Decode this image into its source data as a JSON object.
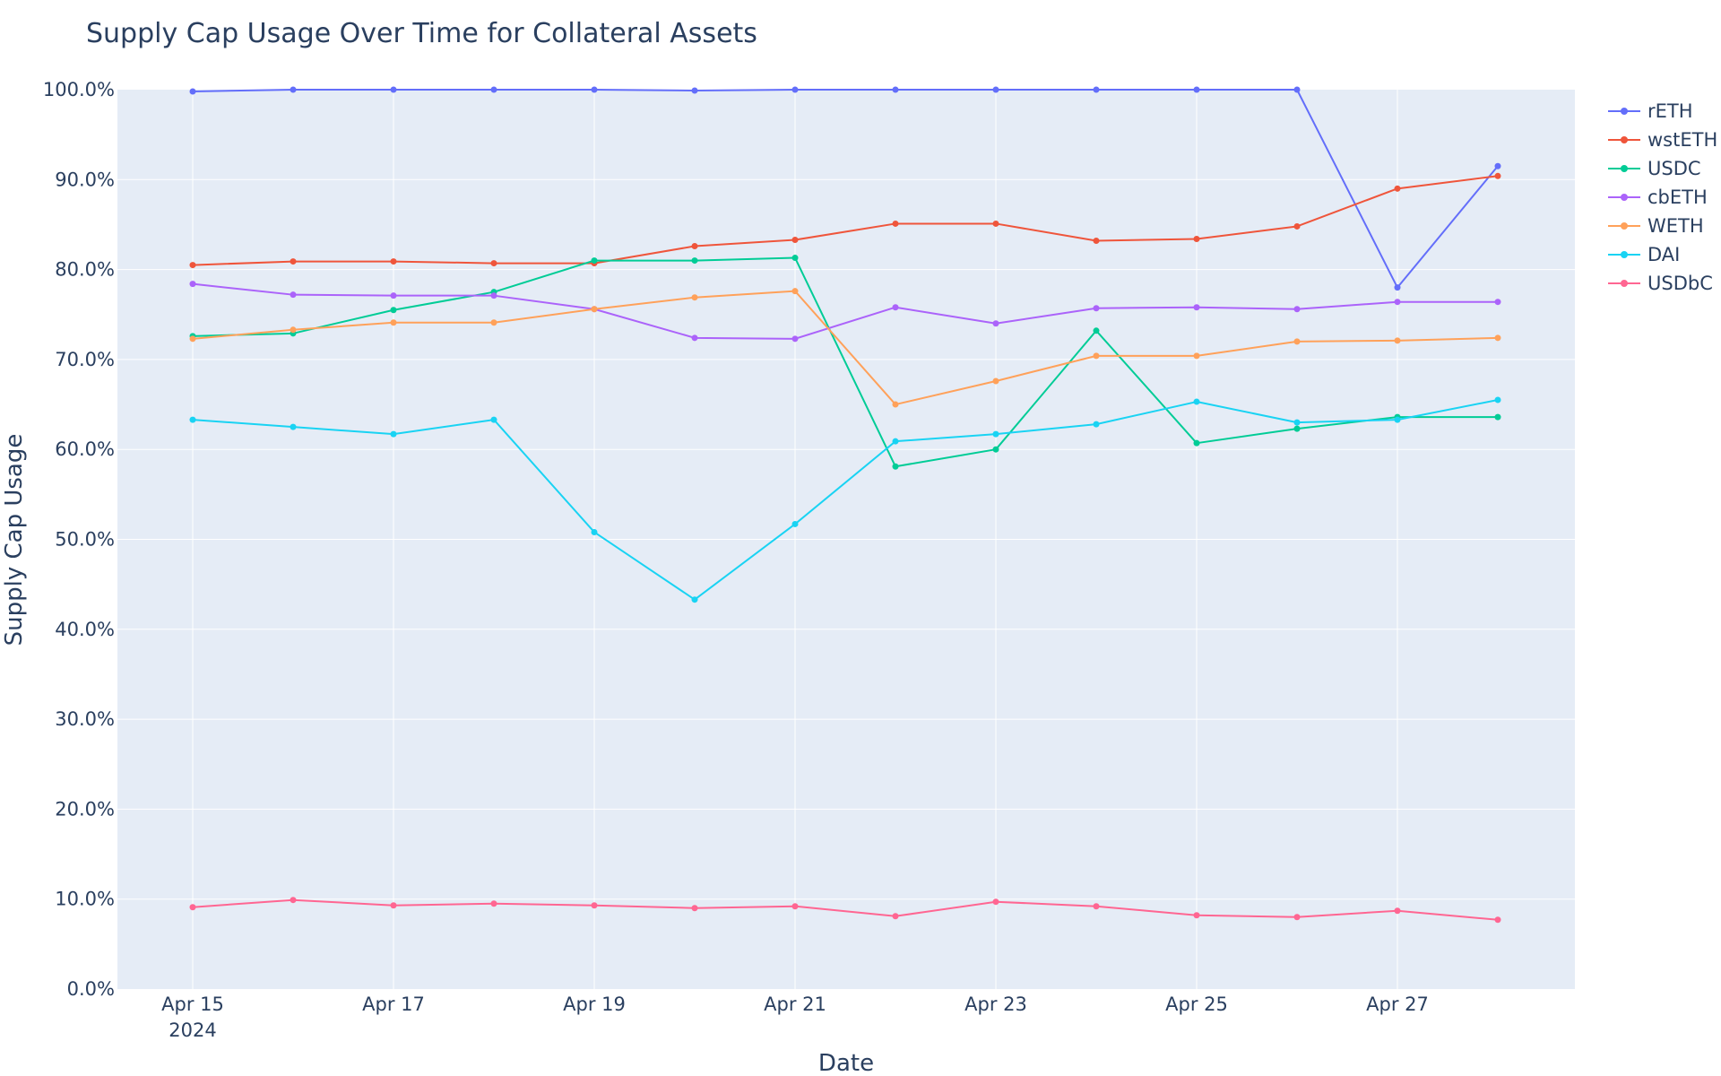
{
  "chart_data": {
    "type": "line",
    "title": "Supply Cap Usage Over Time for Collateral Assets",
    "xlabel": "Date",
    "ylabel": "Supply Cap Usage",
    "ylim": [
      0,
      100
    ],
    "y_tick_format": "percent_1dp",
    "y_ticks": [
      "0.0%",
      "10.0%",
      "20.0%",
      "30.0%",
      "40.0%",
      "50.0%",
      "60.0%",
      "70.0%",
      "80.0%",
      "90.0%",
      "100.0%"
    ],
    "x_ticks": [
      {
        "label": "Apr 15",
        "sublabel": "2024",
        "index": 0
      },
      {
        "label": "Apr 17",
        "sublabel": "",
        "index": 2
      },
      {
        "label": "Apr 19",
        "sublabel": "",
        "index": 4
      },
      {
        "label": "Apr 21",
        "sublabel": "",
        "index": 6
      },
      {
        "label": "Apr 23",
        "sublabel": "",
        "index": 8
      },
      {
        "label": "Apr 25",
        "sublabel": "",
        "index": 10
      },
      {
        "label": "Apr 27",
        "sublabel": "",
        "index": 12
      }
    ],
    "x": [
      "2024-04-15",
      "2024-04-16",
      "2024-04-17",
      "2024-04-18",
      "2024-04-19",
      "2024-04-20",
      "2024-04-21",
      "2024-04-22",
      "2024-04-23",
      "2024-04-24",
      "2024-04-25",
      "2024-04-26",
      "2024-04-27",
      "2024-04-28"
    ],
    "grid": true,
    "legend_position": "right",
    "series": [
      {
        "name": "rETH",
        "color": "#636efa",
        "values": [
          99.8,
          100.0,
          100.0,
          100.0,
          100.0,
          99.9,
          100.0,
          100.0,
          100.0,
          100.0,
          100.0,
          100.0,
          78.0,
          91.5
        ]
      },
      {
        "name": "wstETH",
        "color": "#ef553b",
        "values": [
          80.5,
          80.9,
          80.9,
          80.7,
          80.7,
          82.6,
          83.3,
          85.1,
          85.1,
          83.2,
          83.4,
          84.8,
          89.0,
          90.4
        ]
      },
      {
        "name": "USDC",
        "color": "#00cc96",
        "values": [
          72.6,
          72.9,
          75.5,
          77.5,
          81.0,
          81.0,
          81.3,
          58.1,
          60.0,
          73.2,
          60.7,
          62.3,
          63.6,
          63.6
        ]
      },
      {
        "name": "cbETH",
        "color": "#ab63fa",
        "values": [
          78.4,
          77.2,
          77.1,
          77.1,
          75.6,
          72.4,
          72.3,
          75.8,
          74.0,
          75.7,
          75.8,
          75.6,
          76.4,
          76.4
        ]
      },
      {
        "name": "WETH",
        "color": "#ffa15a",
        "values": [
          72.3,
          73.3,
          74.1,
          74.1,
          75.6,
          76.9,
          77.6,
          65.0,
          67.6,
          70.4,
          70.4,
          72.0,
          72.1,
          72.4
        ]
      },
      {
        "name": "DAI",
        "color": "#19d3f3",
        "values": [
          63.3,
          62.5,
          61.7,
          63.3,
          50.8,
          43.3,
          51.7,
          60.9,
          61.7,
          62.8,
          65.3,
          63.0,
          63.3,
          65.5
        ]
      },
      {
        "name": "USDbC",
        "color": "#ff6692",
        "values": [
          9.1,
          9.9,
          9.3,
          9.5,
          9.3,
          9.0,
          9.2,
          8.1,
          9.7,
          9.2,
          8.2,
          8.0,
          8.7,
          7.7
        ]
      }
    ]
  },
  "colors": {
    "plot_background": "#e5ecf6",
    "grid": "#ffffff",
    "text": "#2a3f5f"
  }
}
